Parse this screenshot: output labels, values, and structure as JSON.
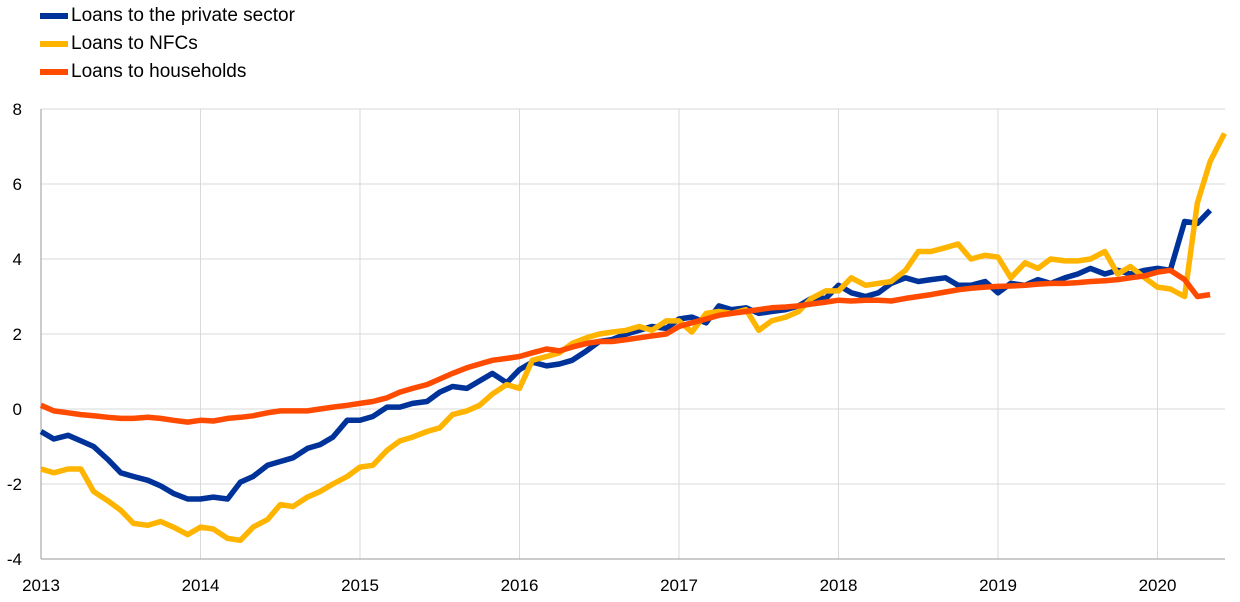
{
  "chart_data": {
    "type": "line",
    "title": "",
    "xlabel": "",
    "ylabel": "",
    "xlim": [
      2013.0,
      2020.42
    ],
    "ylim": [
      -4,
      8
    ],
    "grid": true,
    "legend_position": "top-left",
    "x_ticks": [
      "2013",
      "2014",
      "2015",
      "2016",
      "2017",
      "2018",
      "2019",
      "2020"
    ],
    "y_ticks": [
      "-4",
      "-2",
      "0",
      "2",
      "4",
      "6",
      "8"
    ],
    "series": [
      {
        "name": "Loans to the private sector",
        "color": "#003399",
        "points": [
          [
            2013.0,
            -0.6
          ],
          [
            2013.08,
            -0.8
          ],
          [
            2013.17,
            -0.7
          ],
          [
            2013.25,
            -0.85
          ],
          [
            2013.33,
            -1.0
          ],
          [
            2013.42,
            -1.35
          ],
          [
            2013.5,
            -1.7
          ],
          [
            2013.58,
            -1.8
          ],
          [
            2013.67,
            -1.9
          ],
          [
            2013.75,
            -2.05
          ],
          [
            2013.83,
            -2.25
          ],
          [
            2013.92,
            -2.4
          ],
          [
            2014.0,
            -2.4
          ],
          [
            2014.08,
            -2.35
          ],
          [
            2014.17,
            -2.4
          ],
          [
            2014.25,
            -1.95
          ],
          [
            2014.33,
            -1.8
          ],
          [
            2014.42,
            -1.5
          ],
          [
            2014.5,
            -1.4
          ],
          [
            2014.58,
            -1.3
          ],
          [
            2014.67,
            -1.05
          ],
          [
            2014.75,
            -0.95
          ],
          [
            2014.83,
            -0.75
          ],
          [
            2014.92,
            -0.3
          ],
          [
            2015.0,
            -0.3
          ],
          [
            2015.08,
            -0.2
          ],
          [
            2015.17,
            0.05
          ],
          [
            2015.25,
            0.05
          ],
          [
            2015.33,
            0.15
          ],
          [
            2015.42,
            0.2
          ],
          [
            2015.5,
            0.45
          ],
          [
            2015.58,
            0.6
          ],
          [
            2015.67,
            0.55
          ],
          [
            2015.75,
            0.75
          ],
          [
            2015.83,
            0.95
          ],
          [
            2015.92,
            0.7
          ],
          [
            2016.0,
            1.05
          ],
          [
            2016.08,
            1.25
          ],
          [
            2016.17,
            1.15
          ],
          [
            2016.25,
            1.2
          ],
          [
            2016.33,
            1.3
          ],
          [
            2016.42,
            1.55
          ],
          [
            2016.5,
            1.8
          ],
          [
            2016.58,
            1.85
          ],
          [
            2016.67,
            2.0
          ],
          [
            2016.75,
            2.1
          ],
          [
            2016.83,
            2.2
          ],
          [
            2016.92,
            2.15
          ],
          [
            2017.0,
            2.4
          ],
          [
            2017.08,
            2.45
          ],
          [
            2017.17,
            2.3
          ],
          [
            2017.25,
            2.75
          ],
          [
            2017.33,
            2.65
          ],
          [
            2017.42,
            2.7
          ],
          [
            2017.5,
            2.55
          ],
          [
            2017.58,
            2.6
          ],
          [
            2017.67,
            2.65
          ],
          [
            2017.75,
            2.75
          ],
          [
            2017.83,
            2.95
          ],
          [
            2017.92,
            2.95
          ],
          [
            2018.0,
            3.3
          ],
          [
            2018.08,
            3.1
          ],
          [
            2018.17,
            3.0
          ],
          [
            2018.25,
            3.1
          ],
          [
            2018.33,
            3.35
          ],
          [
            2018.42,
            3.5
          ],
          [
            2018.5,
            3.4
          ],
          [
            2018.58,
            3.45
          ],
          [
            2018.67,
            3.5
          ],
          [
            2018.75,
            3.3
          ],
          [
            2018.83,
            3.3
          ],
          [
            2018.92,
            3.4
          ],
          [
            2019.0,
            3.1
          ],
          [
            2019.08,
            3.35
          ],
          [
            2019.17,
            3.3
          ],
          [
            2019.25,
            3.45
          ],
          [
            2019.33,
            3.35
          ],
          [
            2019.42,
            3.5
          ],
          [
            2019.5,
            3.6
          ],
          [
            2019.58,
            3.75
          ],
          [
            2019.67,
            3.6
          ],
          [
            2019.75,
            3.7
          ],
          [
            2019.83,
            3.6
          ],
          [
            2019.92,
            3.7
          ],
          [
            2020.0,
            3.75
          ],
          [
            2020.08,
            3.7
          ],
          [
            2020.17,
            5.0
          ],
          [
            2020.25,
            4.95
          ],
          [
            2020.33,
            5.3
          ]
        ]
      },
      {
        "name": "Loans to NFCs",
        "color": "#ffb400",
        "points": [
          [
            2013.0,
            -1.6
          ],
          [
            2013.08,
            -1.7
          ],
          [
            2013.17,
            -1.6
          ],
          [
            2013.25,
            -1.6
          ],
          [
            2013.33,
            -2.2
          ],
          [
            2013.42,
            -2.45
          ],
          [
            2013.5,
            -2.7
          ],
          [
            2013.58,
            -3.05
          ],
          [
            2013.67,
            -3.1
          ],
          [
            2013.75,
            -3.0
          ],
          [
            2013.83,
            -3.15
          ],
          [
            2013.92,
            -3.35
          ],
          [
            2014.0,
            -3.15
          ],
          [
            2014.08,
            -3.2
          ],
          [
            2014.17,
            -3.45
          ],
          [
            2014.25,
            -3.5
          ],
          [
            2014.33,
            -3.15
          ],
          [
            2014.42,
            -2.95
          ],
          [
            2014.5,
            -2.55
          ],
          [
            2014.58,
            -2.6
          ],
          [
            2014.67,
            -2.35
          ],
          [
            2014.75,
            -2.2
          ],
          [
            2014.83,
            -2.0
          ],
          [
            2014.92,
            -1.8
          ],
          [
            2015.0,
            -1.55
          ],
          [
            2015.08,
            -1.5
          ],
          [
            2015.17,
            -1.1
          ],
          [
            2015.25,
            -0.85
          ],
          [
            2015.33,
            -0.75
          ],
          [
            2015.42,
            -0.6
          ],
          [
            2015.5,
            -0.5
          ],
          [
            2015.58,
            -0.15
          ],
          [
            2015.67,
            -0.05
          ],
          [
            2015.75,
            0.1
          ],
          [
            2015.83,
            0.4
          ],
          [
            2015.92,
            0.65
          ],
          [
            2016.0,
            0.55
          ],
          [
            2016.08,
            1.3
          ],
          [
            2016.17,
            1.4
          ],
          [
            2016.25,
            1.5
          ],
          [
            2016.33,
            1.75
          ],
          [
            2016.42,
            1.9
          ],
          [
            2016.5,
            2.0
          ],
          [
            2016.58,
            2.05
          ],
          [
            2016.67,
            2.1
          ],
          [
            2016.75,
            2.2
          ],
          [
            2016.83,
            2.1
          ],
          [
            2016.92,
            2.35
          ],
          [
            2017.0,
            2.35
          ],
          [
            2017.08,
            2.05
          ],
          [
            2017.17,
            2.55
          ],
          [
            2017.25,
            2.6
          ],
          [
            2017.33,
            2.55
          ],
          [
            2017.42,
            2.65
          ],
          [
            2017.5,
            2.1
          ],
          [
            2017.58,
            2.35
          ],
          [
            2017.67,
            2.45
          ],
          [
            2017.75,
            2.6
          ],
          [
            2017.83,
            2.95
          ],
          [
            2017.92,
            3.15
          ],
          [
            2018.0,
            3.15
          ],
          [
            2018.08,
            3.5
          ],
          [
            2018.17,
            3.3
          ],
          [
            2018.25,
            3.35
          ],
          [
            2018.33,
            3.4
          ],
          [
            2018.42,
            3.7
          ],
          [
            2018.5,
            4.2
          ],
          [
            2018.58,
            4.2
          ],
          [
            2018.67,
            4.3
          ],
          [
            2018.75,
            4.4
          ],
          [
            2018.83,
            4.0
          ],
          [
            2018.92,
            4.1
          ],
          [
            2019.0,
            4.05
          ],
          [
            2019.08,
            3.5
          ],
          [
            2019.17,
            3.9
          ],
          [
            2019.25,
            3.75
          ],
          [
            2019.33,
            4.0
          ],
          [
            2019.42,
            3.95
          ],
          [
            2019.5,
            3.95
          ],
          [
            2019.58,
            4.0
          ],
          [
            2019.67,
            4.2
          ],
          [
            2019.75,
            3.6
          ],
          [
            2019.83,
            3.8
          ],
          [
            2019.92,
            3.5
          ],
          [
            2020.0,
            3.25
          ],
          [
            2020.08,
            3.2
          ],
          [
            2020.17,
            3.0
          ],
          [
            2020.25,
            5.5
          ],
          [
            2020.33,
            6.6
          ],
          [
            2020.42,
            7.35
          ]
        ]
      },
      {
        "name": "Loans to households",
        "color": "#ff4b00",
        "points": [
          [
            2013.0,
            0.1
          ],
          [
            2013.08,
            -0.05
          ],
          [
            2013.17,
            -0.1
          ],
          [
            2013.25,
            -0.15
          ],
          [
            2013.33,
            -0.18
          ],
          [
            2013.42,
            -0.22
          ],
          [
            2013.5,
            -0.25
          ],
          [
            2013.58,
            -0.25
          ],
          [
            2013.67,
            -0.22
          ],
          [
            2013.75,
            -0.25
          ],
          [
            2013.83,
            -0.3
          ],
          [
            2013.92,
            -0.35
          ],
          [
            2014.0,
            -0.3
          ],
          [
            2014.08,
            -0.32
          ],
          [
            2014.17,
            -0.25
          ],
          [
            2014.25,
            -0.22
          ],
          [
            2014.33,
            -0.18
          ],
          [
            2014.42,
            -0.1
          ],
          [
            2014.5,
            -0.05
          ],
          [
            2014.58,
            -0.05
          ],
          [
            2014.67,
            -0.05
          ],
          [
            2014.75,
            0.0
          ],
          [
            2014.83,
            0.05
          ],
          [
            2014.92,
            0.1
          ],
          [
            2015.0,
            0.15
          ],
          [
            2015.08,
            0.2
          ],
          [
            2015.17,
            0.3
          ],
          [
            2015.25,
            0.45
          ],
          [
            2015.33,
            0.55
          ],
          [
            2015.42,
            0.65
          ],
          [
            2015.5,
            0.8
          ],
          [
            2015.58,
            0.95
          ],
          [
            2015.67,
            1.1
          ],
          [
            2015.75,
            1.2
          ],
          [
            2015.83,
            1.3
          ],
          [
            2015.92,
            1.35
          ],
          [
            2016.0,
            1.4
          ],
          [
            2016.08,
            1.5
          ],
          [
            2016.17,
            1.6
          ],
          [
            2016.25,
            1.55
          ],
          [
            2016.33,
            1.65
          ],
          [
            2016.42,
            1.75
          ],
          [
            2016.5,
            1.8
          ],
          [
            2016.58,
            1.8
          ],
          [
            2016.67,
            1.85
          ],
          [
            2016.75,
            1.9
          ],
          [
            2016.83,
            1.95
          ],
          [
            2016.92,
            2.0
          ],
          [
            2017.0,
            2.2
          ],
          [
            2017.08,
            2.3
          ],
          [
            2017.17,
            2.4
          ],
          [
            2017.25,
            2.5
          ],
          [
            2017.33,
            2.55
          ],
          [
            2017.42,
            2.6
          ],
          [
            2017.5,
            2.65
          ],
          [
            2017.58,
            2.7
          ],
          [
            2017.67,
            2.72
          ],
          [
            2017.75,
            2.75
          ],
          [
            2017.83,
            2.8
          ],
          [
            2017.92,
            2.85
          ],
          [
            2018.0,
            2.9
          ],
          [
            2018.08,
            2.88
          ],
          [
            2018.17,
            2.9
          ],
          [
            2018.25,
            2.9
          ],
          [
            2018.33,
            2.88
          ],
          [
            2018.42,
            2.95
          ],
          [
            2018.5,
            3.0
          ],
          [
            2018.58,
            3.05
          ],
          [
            2018.67,
            3.12
          ],
          [
            2018.75,
            3.18
          ],
          [
            2018.83,
            3.22
          ],
          [
            2018.92,
            3.25
          ],
          [
            2019.0,
            3.27
          ],
          [
            2019.08,
            3.28
          ],
          [
            2019.17,
            3.3
          ],
          [
            2019.25,
            3.33
          ],
          [
            2019.33,
            3.35
          ],
          [
            2019.42,
            3.35
          ],
          [
            2019.5,
            3.37
          ],
          [
            2019.58,
            3.4
          ],
          [
            2019.67,
            3.42
          ],
          [
            2019.75,
            3.45
          ],
          [
            2019.83,
            3.5
          ],
          [
            2019.92,
            3.55
          ],
          [
            2020.0,
            3.65
          ],
          [
            2020.08,
            3.7
          ],
          [
            2020.17,
            3.45
          ],
          [
            2020.25,
            3.0
          ],
          [
            2020.33,
            3.05
          ]
        ]
      }
    ]
  }
}
